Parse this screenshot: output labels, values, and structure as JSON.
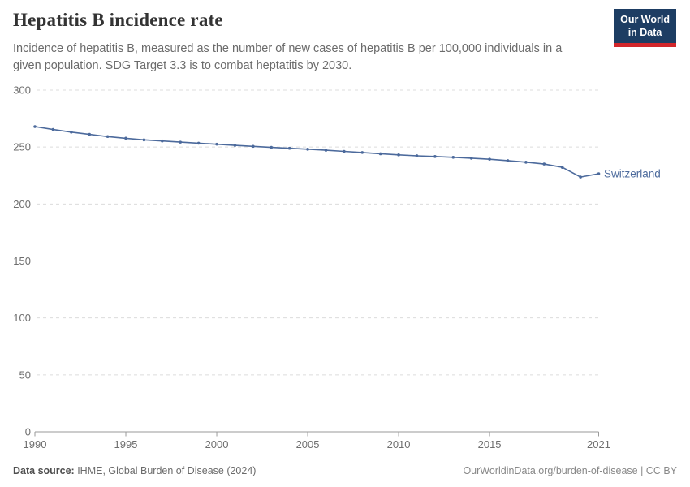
{
  "header": {
    "title": "Hepatitis B incidence rate",
    "subtitle": "Incidence of hepatitis B, measured as the number of new cases of hepatitis B per 100,000 individuals in a given population. SDG Target 3.3 is to combat heptatitis by 2030."
  },
  "logo": {
    "line1": "Our World",
    "line2": "in Data",
    "bg_color": "#1d3d63",
    "stripe_color": "#d2262b"
  },
  "footer": {
    "source_label": "Data source:",
    "source_text": " IHME, Global Burden of Disease (2024)",
    "link_text": "OurWorldinData.org/burden-of-disease | CC BY"
  },
  "chart_data": {
    "type": "line",
    "title": "Hepatitis B incidence rate",
    "xlabel": "",
    "ylabel": "",
    "xlim": [
      1990,
      2021
    ],
    "ylim": [
      0,
      300
    ],
    "grid": "horizontal-dashed",
    "legend": "end-of-line-label",
    "xticks": [
      1990,
      1995,
      2000,
      2005,
      2010,
      2015,
      2021
    ],
    "yticks": [
      0,
      50,
      100,
      150,
      200,
      250,
      300
    ],
    "x": [
      1990,
      1991,
      1992,
      1993,
      1994,
      1995,
      1996,
      1997,
      1998,
      1999,
      2000,
      2001,
      2002,
      2003,
      2004,
      2005,
      2006,
      2007,
      2008,
      2009,
      2010,
      2011,
      2012,
      2013,
      2014,
      2015,
      2016,
      2017,
      2018,
      2019,
      2020,
      2021
    ],
    "series": [
      {
        "name": "Switzerland",
        "color": "#4c6a9c",
        "values": [
          267.9,
          265.4,
          263.1,
          261.1,
          259.2,
          257.7,
          256.3,
          255.3,
          254.3,
          253.4,
          252.5,
          251.5,
          250.6,
          249.7,
          248.9,
          248.1,
          247.2,
          246.2,
          245.2,
          244.1,
          243.1,
          242.3,
          241.7,
          241.0,
          240.2,
          239.3,
          238.1,
          236.7,
          235.1,
          232.2,
          223.7,
          226.6
        ]
      }
    ],
    "colors": {
      "gridline": "#dcdcdc",
      "axis": "#9a9a9a",
      "tick_label": "#6e6e6e"
    }
  }
}
